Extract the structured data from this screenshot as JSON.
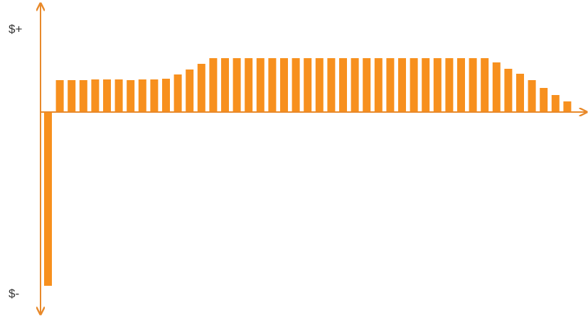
{
  "chart_data": {
    "type": "bar",
    "values": [
      -245,
      45,
      45,
      45,
      46,
      46,
      46,
      45,
      46,
      46,
      47,
      53,
      60,
      68,
      76,
      76,
      76,
      76,
      76,
      76,
      76,
      76,
      76,
      76,
      76,
      76,
      76,
      76,
      76,
      76,
      76,
      76,
      76,
      76,
      76,
      76,
      76,
      76,
      70,
      61,
      54,
      45,
      34,
      24,
      15
    ],
    "color": "#f7901e",
    "ylim": [
      -284,
      150
    ],
    "yticks": [
      {
        "value": 116,
        "label": "$+"
      },
      {
        "value": -257,
        "label": "$-"
      }
    ],
    "grid": false
  }
}
